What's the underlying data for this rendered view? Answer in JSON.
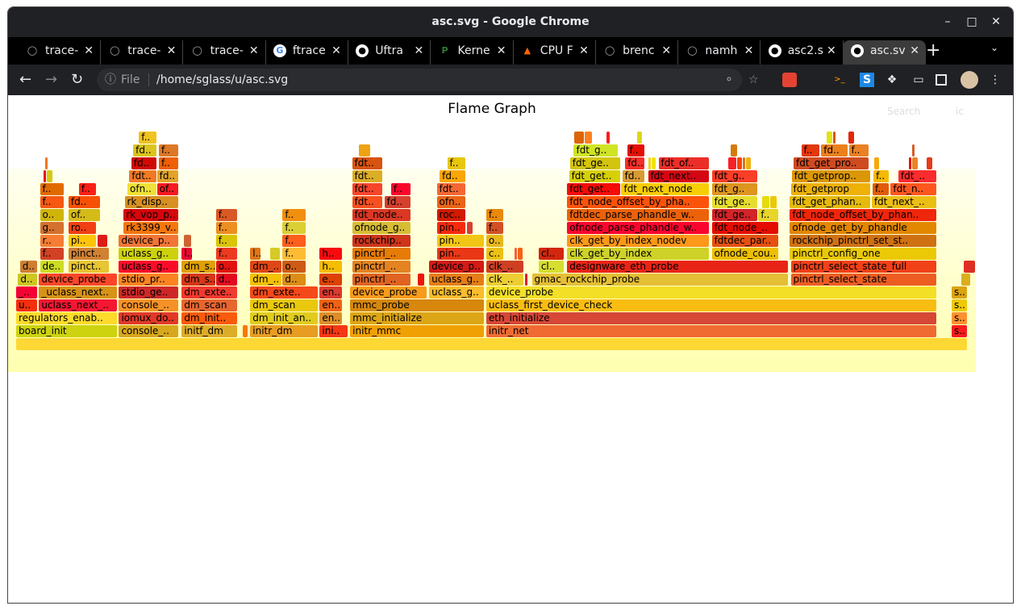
{
  "window": {
    "title": "asc.svg - Google Chrome",
    "controls": [
      "–",
      "□",
      "✕"
    ]
  },
  "tabs": [
    {
      "label": "trace-",
      "icon": "github-icon"
    },
    {
      "label": "trace-",
      "icon": "github-icon"
    },
    {
      "label": "trace-",
      "icon": "github-icon"
    },
    {
      "label": "ftrace",
      "icon": "google-icon"
    },
    {
      "label": "Uftra",
      "icon": "globe-icon"
    },
    {
      "label": "Kerne",
      "icon": "patchwork-icon"
    },
    {
      "label": "CPU F",
      "icon": "flame-icon"
    },
    {
      "label": "brenc",
      "icon": "github-icon"
    },
    {
      "label": "namh",
      "icon": "github-icon"
    },
    {
      "label": "asc2.s",
      "icon": "globe-icon"
    },
    {
      "label": "asc.sv",
      "icon": "globe-icon",
      "active": true
    }
  ],
  "address": {
    "scheme_label": "File",
    "url": "/home/sglass/u/asc.svg"
  },
  "page": {
    "title": "Flame Graph",
    "search_label": "Search",
    "ic_label": "ic"
  },
  "colors": {
    "palette": "hot",
    "background_top": "#fffff0",
    "background_bottom": "#ffffb0"
  },
  "flame": {
    "unit": "percent of samples",
    "levels": [
      [
        [
          "",
          0,
          100
        ]
      ],
      [
        [
          "board_init",
          0,
          10.7
        ],
        [
          "console_..",
          10.8,
          17.1
        ],
        [
          "initf_dm",
          17.4,
          23.3
        ],
        [
          "initr_dm",
          24.6,
          31.8
        ],
        [
          "ini..",
          31.9,
          34.9
        ],
        [
          "initr_mmc",
          35.1,
          49.2
        ],
        [
          "initr_net",
          49.4,
          96.8
        ],
        [
          "s..",
          98.3,
          100
        ]
      ],
      [
        [
          "regulators_enab..",
          0,
          10.7
        ],
        [
          "iomux_do..",
          10.8,
          17.1
        ],
        [
          "dm_init..",
          17.4,
          23.3
        ],
        [
          "dm_init_an..",
          24.6,
          31.8
        ],
        [
          "en..",
          31.9,
          34.3
        ],
        [
          "mmc_initialize",
          35.1,
          49.2
        ],
        [
          "eth_initialize",
          49.4,
          96.8
        ],
        [
          "s..",
          98.3,
          100
        ]
      ],
      [
        [
          "u..",
          0,
          2.3
        ],
        [
          "uclass_next_..",
          2.4,
          10.7
        ],
        [
          "console_..",
          10.8,
          17.1
        ],
        [
          "dm_scan",
          17.4,
          23.3
        ],
        [
          "dm_scan",
          24.6,
          31.8
        ],
        [
          "en..",
          31.9,
          34.3
        ],
        [
          "mmc_probe",
          35.1,
          49.2
        ],
        [
          "uclass_first_device_check",
          49.4,
          96.8
        ],
        [
          "s..",
          98.3,
          100
        ]
      ],
      [
        [
          "_..",
          0,
          2.3
        ],
        [
          "_uclass_next..",
          2.4,
          10.7
        ],
        [
          "stdio_ge..",
          10.8,
          17.1
        ],
        [
          "dm_exte..",
          17.4,
          23.3
        ],
        [
          "dm_exte..",
          24.6,
          31.8
        ],
        [
          "en..",
          31.9,
          34.3
        ],
        [
          "device_probe",
          35.1,
          43.2
        ],
        [
          "uclass_g..",
          43.4,
          49.2
        ],
        [
          "device_probe",
          49.4,
          96.8
        ],
        [
          "s..",
          98.3,
          100
        ]
      ],
      [
        [
          "d..",
          0.2,
          2.3
        ],
        [
          "device_probe",
          2.4,
          10.7
        ],
        [
          "stdio_pr..",
          10.8,
          17.1
        ],
        [
          "dm_s..",
          17.4,
          21.0
        ],
        [
          "d..",
          21.0,
          23.3
        ],
        [
          "dm_..",
          24.6,
          28.0
        ],
        [
          "d..",
          28.0,
          30.5
        ],
        [
          "e..",
          31.9,
          34.3
        ],
        [
          "pinctrl_..",
          35.3,
          41.5
        ],
        [
          "uclass_g..",
          43.4,
          49.2
        ],
        [
          "clk_..",
          49.4,
          53.4
        ],
        [
          "gmac_rockchip_probe",
          54.2,
          81.2
        ],
        [
          "pinctrl_select_state",
          81.4,
          96.8
        ]
      ],
      [
        [
          "d..",
          0.4,
          2.3
        ],
        [
          "de..",
          2.5,
          5.1
        ],
        [
          "pinct..",
          5.5,
          9.8
        ],
        [
          "uclass_g..",
          10.8,
          17.1
        ],
        [
          "dm_s..",
          17.4,
          21.0
        ],
        [
          "o..",
          21.0,
          23.3
        ],
        [
          "dm_..",
          24.6,
          28.0
        ],
        [
          "o..",
          28.0,
          30.5
        ],
        [
          "h..",
          31.9,
          34.3
        ],
        [
          "pinctrl_..",
          35.3,
          41.5
        ],
        [
          "device_p..",
          43.4,
          49.2
        ],
        [
          "clk_..",
          49.4,
          53.4
        ],
        [
          "cl..",
          54.9,
          57.6
        ],
        [
          "designware_eth_probe",
          57.9,
          81.2
        ],
        [
          "pinctrl_select_state_full",
          81.4,
          96.8
        ]
      ],
      [
        [
          "f..",
          2.5,
          5.1
        ],
        [
          "pinct..",
          5.5,
          9.8
        ],
        [
          "uclass_g..",
          10.8,
          17.1
        ],
        [
          "l..",
          17.4,
          18.6
        ],
        [
          "f..",
          21.0,
          23.3
        ],
        [
          "l..",
          24.6,
          25.8
        ],
        [
          "f..",
          28.0,
          30.5
        ],
        [
          "h..",
          31.9,
          34.3
        ],
        [
          "pinctrl_..",
          35.3,
          41.5
        ],
        [
          "pin..",
          44.2,
          49.2
        ],
        [
          "c..",
          49.4,
          51.3
        ],
        [
          "cl..",
          54.9,
          57.6
        ],
        [
          "clk_get_by_index",
          57.9,
          72.9
        ],
        [
          "ofnode_cou..",
          73.1,
          80.2
        ],
        [
          "pinctrl_config_one",
          81.3,
          96.8
        ]
      ],
      [
        [
          "r..",
          2.5,
          5.1
        ],
        [
          "pi..",
          5.5,
          8.5
        ],
        [
          "device_p..",
          10.8,
          17.1
        ],
        [
          "f..",
          21.0,
          23.3
        ],
        [
          "f..",
          28.0,
          30.5
        ],
        [
          "rockchip..",
          35.3,
          41.5
        ],
        [
          "pin..",
          44.2,
          49.2
        ],
        [
          "o..",
          49.4,
          51.3
        ],
        [
          "clk_get_by_index_nodev",
          57.9,
          72.9
        ],
        [
          "fdtdec_par..",
          73.1,
          80.2
        ],
        [
          "rockchip_pinctrl_set_st..",
          81.3,
          96.8
        ]
      ],
      [
        [
          "g..",
          2.5,
          5.1
        ],
        [
          "ro..",
          5.5,
          8.5
        ],
        [
          "rk3399_v..",
          11.3,
          17.1
        ],
        [
          "f..",
          21.0,
          23.3
        ],
        [
          "f..",
          28.0,
          30.5
        ],
        [
          "ofnode_g..",
          35.3,
          41.5
        ],
        [
          "pin..",
          44.2,
          47.3
        ],
        [
          "f..",
          49.4,
          51.3
        ],
        [
          "ofnode_parse_phandle_w..",
          57.9,
          72.9
        ],
        [
          "fdt_node_..",
          73.1,
          80.2
        ],
        [
          "ofnode_get_by_phandle",
          81.3,
          96.8
        ]
      ],
      [
        [
          "o..",
          2.5,
          5.1
        ],
        [
          "of..",
          5.5,
          8.9
        ],
        [
          "rk_vop_p..",
          11.3,
          17.1
        ],
        [
          "f..",
          21.0,
          23.3
        ],
        [
          "f..",
          28.0,
          30.5
        ],
        [
          "fdt_node..",
          35.3,
          41.5
        ],
        [
          "roc..",
          44.2,
          47.3
        ],
        [
          "f..",
          49.4,
          51.3
        ],
        [
          "fdtdec_parse_phandle_w..",
          57.9,
          72.9
        ],
        [
          "fdt_ge..",
          73.1,
          78.0
        ],
        [
          "f..",
          78.0,
          80.2
        ],
        [
          "fdt_node_offset_by_phan..",
          81.3,
          96.8
        ]
      ],
      [
        [
          "f..",
          2.5,
          5.1
        ],
        [
          "fd..",
          5.5,
          8.9
        ],
        [
          "rk_disp..",
          11.4,
          17.1
        ],
        [
          "fdt..",
          35.3,
          38.6
        ],
        [
          "fd..",
          38.7,
          41.5
        ],
        [
          "ofn..",
          44.2,
          47.3
        ],
        [
          "fdt_node_offset_by_pha..",
          57.9,
          72.9
        ],
        [
          "fdt_ge..",
          73.1,
          78.0
        ],
        [
          "fdt_get_phan..",
          81.3,
          89.8
        ],
        [
          "fdt_next_..",
          89.9,
          96.8
        ]
      ],
      [
        [
          "f..",
          2.5,
          5.1
        ],
        [
          "f..",
          6.6,
          8.5
        ],
        [
          "ofn..",
          11.7,
          14.8
        ],
        [
          "of..",
          14.8,
          17.1
        ],
        [
          "fdt..",
          35.3,
          38.6
        ],
        [
          "f..",
          39.4,
          41.5
        ],
        [
          "fdt..",
          44.2,
          47.3
        ],
        [
          "fdt_get..",
          57.9,
          63.6
        ],
        [
          "fdt_next_node",
          63.6,
          72.9
        ],
        [
          "fdt_g..",
          73.1,
          78.0
        ],
        [
          "fdt_getprop",
          81.4,
          89.8
        ],
        [
          "f..",
          90.0,
          91.8
        ],
        [
          "fdt_n..",
          91.9,
          96.8
        ]
      ],
      [
        [
          "fdt..",
          11.9,
          14.8
        ],
        [
          "fd..",
          14.8,
          17.1
        ],
        [
          "fdt..",
          35.3,
          38.6
        ],
        [
          "fd..",
          44.5,
          47.3
        ],
        [
          "fdt_get..",
          58.1,
          63.6
        ],
        [
          "fd..",
          63.7,
          66.1
        ],
        [
          "fdt_next..",
          66.4,
          72.9
        ],
        [
          "fdt_g..",
          73.1,
          78.0
        ],
        [
          "fdt_getprop..",
          81.5,
          89.8
        ],
        [
          "f..",
          90.1,
          91.8
        ],
        [
          "fdt_..",
          92.7,
          96.8
        ]
      ],
      [
        [
          "fd..",
          12.1,
          14.8
        ],
        [
          "f..",
          15.0,
          17.1
        ],
        [
          "fdt..",
          35.3,
          38.6
        ],
        [
          "f..",
          45.3,
          47.3
        ],
        [
          "fdt_ge..",
          58.2,
          63.6
        ],
        [
          "fd..",
          64.0,
          66.1
        ],
        [
          "fdt_of..",
          67.5,
          72.9
        ],
        [
          "fdt_get_pro..",
          81.7,
          89.7
        ]
      ],
      [
        [
          "fd..",
          12.3,
          14.8
        ],
        [
          "f..",
          15.0,
          17.1
        ],
        [
          "fdt_g..",
          58.6,
          63.3
        ],
        [
          "f..",
          64.2,
          66.1
        ],
        [
          "f..",
          82.5,
          84.5
        ],
        [
          "fd..",
          84.6,
          87.5
        ],
        [
          "f..",
          87.5,
          89.7
        ]
      ],
      [
        [
          "f..",
          12.9,
          14.8
        ]
      ]
    ]
  }
}
